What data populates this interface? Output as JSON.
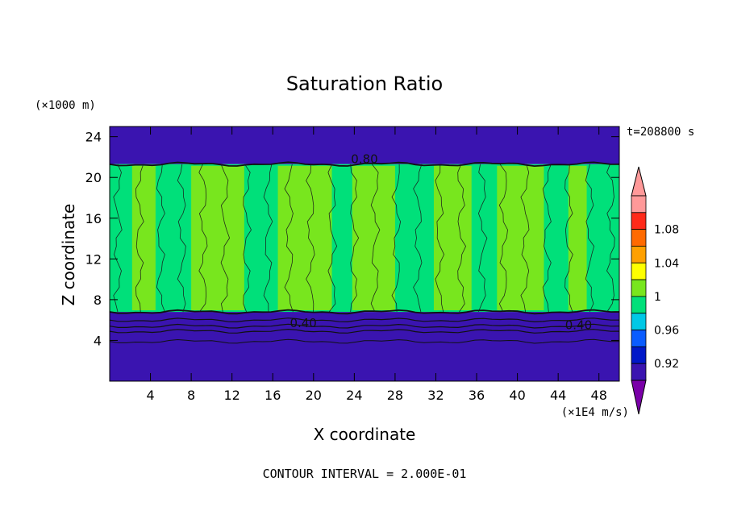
{
  "chart_data": {
    "type": "heatmap",
    "title": "Saturation Ratio",
    "time_label": "t=208800 s",
    "xlabel": "X coordinate",
    "ylabel": "Z coordinate",
    "x_unit": "(×1E4 m/s)",
    "y_unit": "(×1000 m)",
    "xlim": [
      0,
      50
    ],
    "ylim": [
      0,
      25
    ],
    "x_ticks": [
      4,
      8,
      12,
      16,
      20,
      24,
      28,
      32,
      36,
      40,
      44,
      48
    ],
    "y_ticks": [
      4,
      8,
      12,
      16,
      20,
      24
    ],
    "contour_interval_text": "CONTOUR INTERVAL = 2.000E-01",
    "contour_labels": [
      {
        "text": "0.40",
        "x": 19,
        "z": 5.3
      },
      {
        "text": "0.40",
        "x": 46,
        "z": 5.1
      },
      {
        "text": "0.80",
        "x": 25,
        "z": 21.4
      }
    ],
    "colorbar": {
      "levels": [
        0.88,
        0.9,
        0.92,
        0.94,
        0.96,
        0.98,
        1.0,
        1.02,
        1.04,
        1.06,
        1.08,
        1.1
      ],
      "colors": [
        "#7a00a8",
        "#3a14b0",
        "#0018c8",
        "#0a5cff",
        "#00c8e6",
        "#00e07a",
        "#78e61e",
        "#ffff00",
        "#ffa000",
        "#ff6a00",
        "#ff2a1a",
        "#ff9999"
      ],
      "labels": [
        {
          "text": "0.92",
          "value": 0.92
        },
        {
          "text": "0.96",
          "value": 0.96
        },
        {
          "text": "1",
          "value": 1.0
        },
        {
          "text": "1.04",
          "value": 1.04
        },
        {
          "text": "1.08",
          "value": 1.08
        }
      ]
    },
    "regions": {
      "top_value": 0.9,
      "bottom_value": 0.9,
      "cloud_top_z": 21.3,
      "cloud_base_z": 6.8,
      "green_value": 0.99,
      "yellowgreen_value": 1.01,
      "green_columns": [
        [
          0,
          2.2
        ],
        [
          4.5,
          8.0
        ],
        [
          13.2,
          16.5
        ],
        [
          21.8,
          23.8
        ],
        [
          28.0,
          31.8
        ],
        [
          35.5,
          38.0
        ],
        [
          42.6,
          45.0
        ],
        [
          46.8,
          50
        ]
      ],
      "yellowgreen_columns": [
        [
          2.2,
          4.5
        ],
        [
          8.0,
          13.2
        ],
        [
          16.5,
          21.8
        ],
        [
          23.8,
          28.0
        ],
        [
          31.8,
          35.5
        ],
        [
          38.0,
          42.6
        ],
        [
          45.0,
          46.8
        ]
      ]
    }
  }
}
